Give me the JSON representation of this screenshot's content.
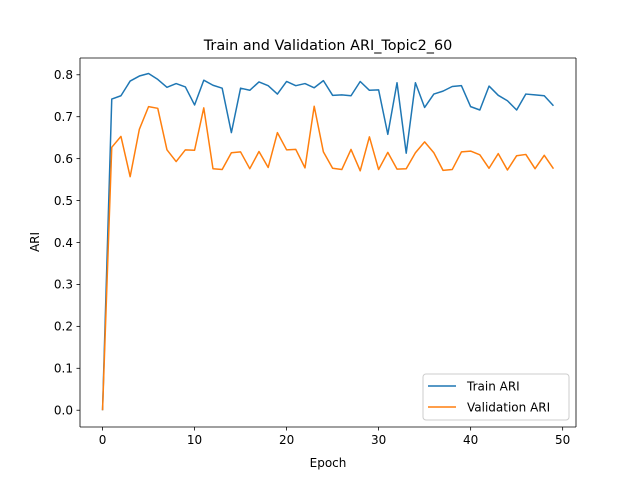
{
  "chart_data": {
    "type": "line",
    "title": "Train and Validation ARI_Topic2_60",
    "xlabel": "Epoch",
    "ylabel": "ARI",
    "xlim": [
      -2.45,
      51.45
    ],
    "ylim": [
      -0.04,
      0.84
    ],
    "xticks": [
      0,
      10,
      20,
      30,
      40,
      50
    ],
    "yticks": [
      0.0,
      0.1,
      0.2,
      0.3,
      0.4,
      0.5,
      0.6,
      0.7,
      0.8
    ],
    "ytick_labels": [
      "0.0",
      "0.1",
      "0.2",
      "0.3",
      "0.4",
      "0.5",
      "0.6",
      "0.7",
      "0.8"
    ],
    "grid": false,
    "legend_position": "lower-right",
    "x": [
      0,
      1,
      2,
      3,
      4,
      5,
      6,
      7,
      8,
      9,
      10,
      11,
      12,
      13,
      14,
      15,
      16,
      17,
      18,
      19,
      20,
      21,
      22,
      23,
      24,
      25,
      26,
      27,
      28,
      29,
      30,
      31,
      32,
      33,
      34,
      35,
      36,
      37,
      38,
      39,
      40,
      41,
      42,
      43,
      44,
      45,
      46,
      47,
      48,
      49
    ],
    "series": [
      {
        "name": "Train ARI",
        "color": "#1f77b4",
        "values": [
          0.0,
          0.742,
          0.75,
          0.785,
          0.797,
          0.803,
          0.789,
          0.77,
          0.779,
          0.771,
          0.728,
          0.787,
          0.775,
          0.768,
          0.662,
          0.768,
          0.763,
          0.783,
          0.774,
          0.754,
          0.784,
          0.774,
          0.779,
          0.769,
          0.786,
          0.751,
          0.752,
          0.75,
          0.784,
          0.763,
          0.764,
          0.658,
          0.781,
          0.613,
          0.781,
          0.722,
          0.754,
          0.761,
          0.772,
          0.774,
          0.724,
          0.716,
          0.773,
          0.751,
          0.738,
          0.716,
          0.754,
          0.752,
          0.75,
          0.726
        ]
      },
      {
        "name": "Validation ARI",
        "color": "#ff7f0e",
        "values": [
          0.0,
          0.627,
          0.653,
          0.557,
          0.67,
          0.724,
          0.72,
          0.621,
          0.593,
          0.621,
          0.62,
          0.721,
          0.576,
          0.574,
          0.614,
          0.616,
          0.576,
          0.617,
          0.579,
          0.662,
          0.621,
          0.622,
          0.578,
          0.725,
          0.616,
          0.577,
          0.574,
          0.622,
          0.571,
          0.652,
          0.574,
          0.615,
          0.575,
          0.576,
          0.614,
          0.64,
          0.614,
          0.572,
          0.574,
          0.616,
          0.618,
          0.609,
          0.577,
          0.612,
          0.573,
          0.607,
          0.61,
          0.576,
          0.608,
          0.576
        ]
      }
    ]
  }
}
